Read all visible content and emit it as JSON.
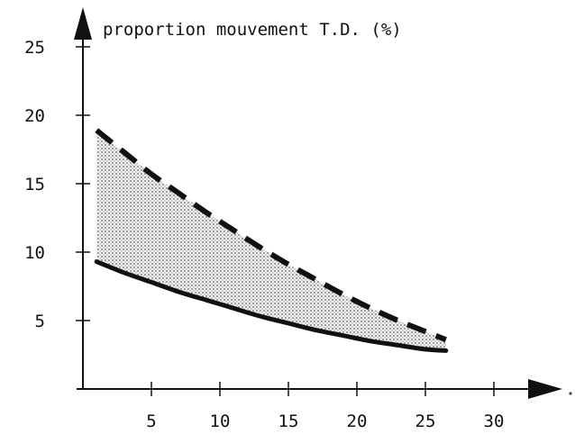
{
  "chart_data": {
    "type": "area",
    "title": "proportion mouvement T.D. (%)",
    "xlabel": "",
    "ylabel": "",
    "xlim": [
      0,
      30
    ],
    "ylim": [
      0,
      25
    ],
    "x_ticks": [
      5,
      10,
      15,
      20,
      25,
      30
    ],
    "y_ticks": [
      5,
      10,
      15,
      20,
      25
    ],
    "x_tick_labels": [
      "5",
      "10",
      "15",
      "20",
      "25",
      "30"
    ],
    "y_tick_labels": [
      "5",
      "10",
      "15",
      "20",
      "25"
    ],
    "grid": false,
    "series": [
      {
        "style": "dashed",
        "x": [
          1,
          3,
          5,
          7,
          9,
          11,
          13,
          15,
          17,
          19,
          21,
          23,
          25,
          26.5
        ],
        "y": [
          18.9,
          17.3,
          15.7,
          14.3,
          12.9,
          11.6,
          10.3,
          9.1,
          8.0,
          6.9,
          5.9,
          5.0,
          4.2,
          3.6
        ]
      },
      {
        "style": "solid",
        "x": [
          1,
          3,
          5,
          7,
          9,
          11,
          13,
          15,
          17,
          19,
          21,
          23,
          25,
          26.5
        ],
        "y": [
          9.3,
          8.5,
          7.8,
          7.1,
          6.5,
          5.9,
          5.3,
          4.8,
          4.3,
          3.9,
          3.5,
          3.2,
          2.9,
          2.8
        ]
      }
    ],
    "shaded_band": "between series",
    "colors": {
      "lines": "#111111",
      "band": "#a9a9a9"
    }
  }
}
